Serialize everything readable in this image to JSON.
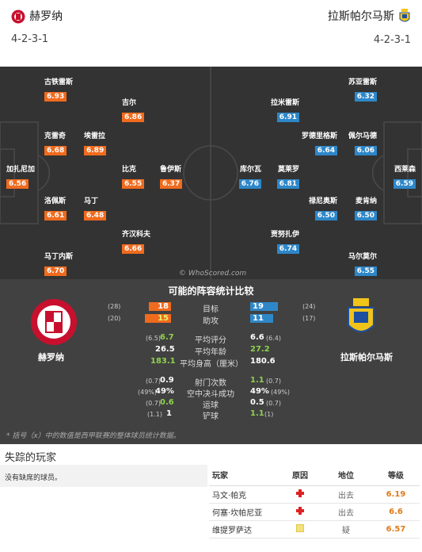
{
  "header": {
    "home": {
      "name": "赫罗纳",
      "formation": "4-2-3-1"
    },
    "away": {
      "name": "拉斯帕尔马斯",
      "formation": "4-2-3-1"
    }
  },
  "home_players": [
    {
      "name": "古铁雷斯",
      "rating": "6.93"
    },
    {
      "name": "吉尔",
      "rating": "6.86"
    },
    {
      "name": "克雷奇",
      "rating": "6.68"
    },
    {
      "name": "埃雷拉",
      "rating": "6.89"
    },
    {
      "name": "加扎尼加",
      "rating": "6.56"
    },
    {
      "name": "比克",
      "rating": "6.55"
    },
    {
      "name": "鲁伊斯",
      "rating": "6.37"
    },
    {
      "name": "洛佩斯",
      "rating": "6.61"
    },
    {
      "name": "马丁",
      "rating": "6.48"
    },
    {
      "name": "齐汉科夫",
      "rating": "6.66"
    },
    {
      "name": "马丁内斯",
      "rating": "6.70"
    }
  ],
  "away_players": [
    {
      "name": "苏亚雷斯",
      "rating": "6.32"
    },
    {
      "name": "拉米雷斯",
      "rating": "6.91"
    },
    {
      "name": "罗德里格斯",
      "rating": "6.64"
    },
    {
      "name": "佩尔马德",
      "rating": "6.06"
    },
    {
      "name": "西莱森",
      "rating": "6.59"
    },
    {
      "name": "库尔瓦",
      "rating": "6.76"
    },
    {
      "name": "莫莱罗",
      "rating": "6.81"
    },
    {
      "name": "禄尼奥斯",
      "rating": "6.50"
    },
    {
      "name": "麦肯纳",
      "rating": "6.50"
    },
    {
      "name": "贾努扎伊",
      "rating": "6.74"
    },
    {
      "name": "马尔莫尔",
      "rating": "6.55"
    }
  ],
  "watermark": "© WhoScored.com",
  "comparison": {
    "title": "可能的阵容统计比较",
    "home_name": "赫罗纳",
    "away_name": "拉斯帕尔马斯",
    "goals": {
      "label": "目标",
      "home": "18",
      "home_season": "(28)",
      "away": "19",
      "away_season": "(24)",
      "home_fraction": 0.64,
      "away_fraction": 0.79
    },
    "assists": {
      "label": "助攻",
      "home": "15",
      "home_season": "(20)",
      "away": "11",
      "away_season": "(17)",
      "home_fraction": 0.75,
      "away_fraction": 0.65
    },
    "avg_rating": {
      "label": "平均评分",
      "home_season": "(6.5)",
      "home": "6.7",
      "away": "6.6",
      "away_season": "(6.4)"
    },
    "avg_age": {
      "label": "平均年龄",
      "home": "26.5",
      "away": "27.2"
    },
    "avg_height": {
      "label": "平均身高（厘米）",
      "home": "183.1",
      "away": "180.6"
    },
    "shots": {
      "label": "射门次数",
      "home_season": "(0.7)",
      "home": "0.9",
      "away": "1.1",
      "away_season": "(0.7)"
    },
    "aerial": {
      "label": "空中决斗成功",
      "home_season": "(49%)",
      "home": "49%",
      "away": "49%",
      "away_season": "(49%)"
    },
    "dribbles": {
      "label": "运球",
      "home_season": "(0.7)",
      "home": "0.6",
      "away": "0.5",
      "away_season": "(0.7)"
    },
    "tackles": {
      "label": "铲球",
      "home_season": "(1.1)",
      "home": "1",
      "away": "1.1",
      "away_season": "(1)"
    },
    "footnote": "* 括号（x）中的数值是西甲联赛的整体球员统计数据。"
  },
  "missing": {
    "title": "失踪的玩家",
    "home_none": "没有缺席的球员。",
    "headers": [
      "玩家",
      "原因",
      "地位",
      "等级"
    ],
    "rows": [
      {
        "player": "马文·帕克",
        "reason": "injury",
        "status": "出去",
        "rating": "6.19"
      },
      {
        "player": "何塞·坎帕尼亚",
        "reason": "injury",
        "status": "出去",
        "rating": "6.6"
      },
      {
        "player": "维提罗萨达",
        "reason": "doubtful",
        "status": "疑",
        "rating": "6.57"
      }
    ]
  },
  "colors": {
    "home_rating": "#f06b1e",
    "away_rating": "#2e87c8",
    "green_stat": "#8fd14f"
  }
}
